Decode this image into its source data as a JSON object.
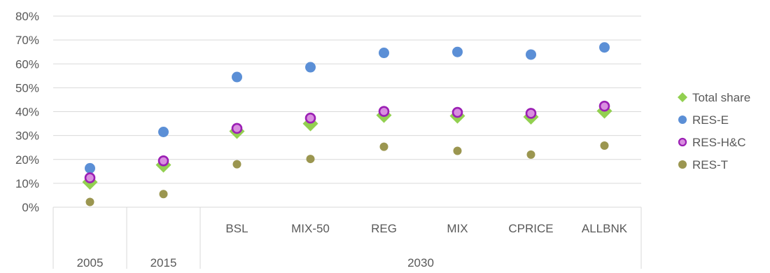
{
  "chart_data": {
    "type": "scatter",
    "categories": [
      "2005",
      "2015",
      "BSL",
      "MIX-50",
      "REG",
      "MIX",
      "CPRICE",
      "ALLBNK"
    ],
    "category_groups": [
      {
        "label": "2005",
        "members": [
          "2005"
        ]
      },
      {
        "label": "2015",
        "members": [
          "2015"
        ]
      },
      {
        "label": "2030",
        "members": [
          "BSL",
          "MIX-50",
          "REG",
          "MIX",
          "CPRICE",
          "ALLBNK"
        ]
      }
    ],
    "y_ticks": [
      "0%",
      "10%",
      "20%",
      "30%",
      "40%",
      "50%",
      "60%",
      "70%",
      "80%"
    ],
    "ylim": [
      0,
      80
    ],
    "grid": true,
    "legend_position": "right",
    "series": [
      {
        "name": "Total share",
        "marker": "diamond",
        "color": "#92d050",
        "values": [
          10.5,
          17.7,
          31.8,
          35.0,
          38.5,
          38.2,
          37.8,
          40.3
        ]
      },
      {
        "name": "RES-E",
        "marker": "circle",
        "color": "#5b8fd6",
        "values": [
          16.3,
          31.5,
          54.5,
          58.6,
          64.6,
          65.0,
          63.9,
          66.9
        ]
      },
      {
        "name": "RES-H&C",
        "marker": "ring",
        "color": "#d98ee0",
        "stroke": "#9b1fb4",
        "values": [
          12.3,
          19.4,
          33.0,
          37.3,
          40.1,
          39.7,
          39.3,
          42.3
        ]
      },
      {
        "name": "RES-T",
        "marker": "circle",
        "color": "#9b9650",
        "values": [
          2.2,
          5.5,
          18.0,
          20.2,
          25.3,
          23.6,
          22.0,
          25.8
        ]
      }
    ]
  }
}
